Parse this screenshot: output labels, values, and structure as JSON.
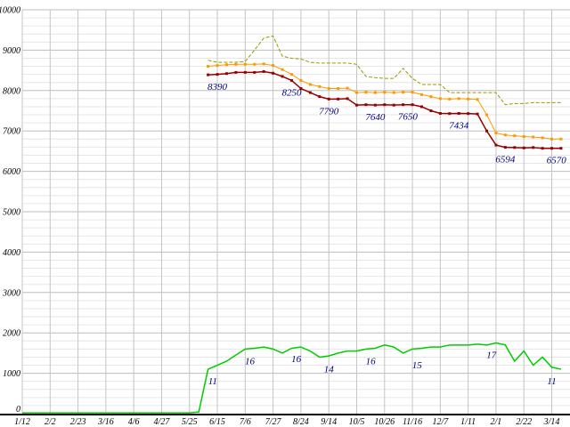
{
  "chart_data": {
    "type": "line",
    "title": "",
    "background": "#ffffff",
    "axis_color": "#000000",
    "label_color": "#000080",
    "grid": {
      "minor_color": "#e6e6e6",
      "major_color": "#bdbdbd",
      "vertical_color": "#c4c4c4"
    },
    "x_axis": {
      "tick_labels": [
        "1/12",
        "2/2",
        "2/23",
        "3/16",
        "4/6",
        "4/27",
        "5/25",
        "6/15",
        "7/6",
        "7/27",
        "8/24",
        "9/14",
        "10/5",
        "10/26",
        "11/16",
        "12/7",
        "1/11",
        "2/1",
        "2/22",
        "3/14"
      ],
      "weeks_per_tick": 3,
      "total_weeks": 59
    },
    "y_axis": {
      "min": 0,
      "max": 10000,
      "major_step": 1000,
      "minor_step": 200,
      "tick_labels": [
        "0",
        "1000",
        "2000",
        "3000",
        "4000",
        "5000",
        "6000",
        "7000",
        "8000",
        "9000",
        "10000"
      ]
    },
    "series": [
      {
        "name": "olive-dashed",
        "color": "#999900",
        "dash": "4,2",
        "marker": "none",
        "line_width": 1,
        "start_week": 20,
        "values": [
          8750,
          8700,
          8700,
          8700,
          8720,
          9000,
          9300,
          9350,
          8850,
          8800,
          8780,
          8700,
          8680,
          8680,
          8680,
          8680,
          8650,
          8350,
          8320,
          8300,
          8300,
          8550,
          8300,
          8150,
          8150,
          8150,
          7950,
          7950,
          7950,
          7950,
          7950,
          7950,
          7650,
          7680,
          7680,
          7700,
          7700,
          7700,
          7700
        ]
      },
      {
        "name": "orange-marked",
        "color": "#ff9900",
        "dash": "none",
        "marker": "square",
        "line_width": 1,
        "start_week": 20,
        "values": [
          8600,
          8620,
          8640,
          8650,
          8650,
          8650,
          8660,
          8620,
          8520,
          8400,
          8250,
          8150,
          8100,
          8050,
          8050,
          8060,
          7950,
          7960,
          7950,
          7960,
          7950,
          7960,
          7960,
          7900,
          7850,
          7800,
          7790,
          7800,
          7790,
          7780,
          7400,
          6950,
          6900,
          6880,
          6860,
          6850,
          6830,
          6800,
          6800
        ]
      },
      {
        "name": "dark-red-marked",
        "color": "#990000",
        "dash": "none",
        "marker": "square",
        "line_width": 1.5,
        "start_week": 20,
        "values": [
          8390,
          8400,
          8420,
          8450,
          8450,
          8450,
          8470,
          8430,
          8350,
          8250,
          8050,
          7950,
          7850,
          7790,
          7790,
          7800,
          7640,
          7650,
          7640,
          7650,
          7640,
          7650,
          7650,
          7600,
          7500,
          7434,
          7430,
          7434,
          7430,
          7420,
          7000,
          6650,
          6594,
          6590,
          6580,
          6590,
          6570,
          6570,
          6570
        ]
      },
      {
        "name": "green",
        "color": "#00cc00",
        "dash": "none",
        "marker": "none",
        "line_width": 1.5,
        "start_week": 0,
        "values": [
          20,
          20,
          20,
          20,
          20,
          20,
          20,
          20,
          20,
          20,
          20,
          20,
          20,
          20,
          20,
          20,
          20,
          20,
          20,
          40,
          1100,
          1200,
          1300,
          1450,
          1600,
          1620,
          1650,
          1600,
          1500,
          1620,
          1650,
          1550,
          1400,
          1430,
          1500,
          1550,
          1550,
          1600,
          1620,
          1700,
          1650,
          1500,
          1600,
          1620,
          1650,
          1650,
          1700,
          1700,
          1700,
          1720,
          1700,
          1750,
          1700,
          1300,
          1550,
          1200,
          1400,
          1150,
          1100
        ]
      }
    ],
    "point_labels": [
      {
        "text": "8390",
        "week": 21,
        "value": 8390,
        "dy": 17
      },
      {
        "text": "8250",
        "week": 29,
        "value": 8250,
        "dy": 17
      },
      {
        "text": "7790",
        "week": 33,
        "value": 7790,
        "dy": 17
      },
      {
        "text": "7640",
        "week": 38,
        "value": 7640,
        "dy": 17
      },
      {
        "text": "7650",
        "week": 41.5,
        "value": 7650,
        "dy": 17
      },
      {
        "text": "7434",
        "week": 47,
        "value": 7434,
        "dy": 17
      },
      {
        "text": "6594",
        "week": 52,
        "value": 6594,
        "dy": 17
      },
      {
        "text": "6570",
        "week": 57.5,
        "value": 6570,
        "dy": 17
      },
      {
        "text": "11",
        "week": 20.5,
        "value": 1100,
        "dy": 17
      },
      {
        "text": "16",
        "week": 24.5,
        "value": 1600,
        "dy": 17
      },
      {
        "text": "16",
        "week": 29.5,
        "value": 1650,
        "dy": 17
      },
      {
        "text": "14",
        "week": 33,
        "value": 1400,
        "dy": 17
      },
      {
        "text": "16",
        "week": 37.5,
        "value": 1600,
        "dy": 17
      },
      {
        "text": "15",
        "week": 42.5,
        "value": 1500,
        "dy": 17
      },
      {
        "text": "17",
        "week": 50.5,
        "value": 1750,
        "dy": 17
      },
      {
        "text": "11",
        "week": 57,
        "value": 1100,
        "dy": 17
      }
    ]
  }
}
